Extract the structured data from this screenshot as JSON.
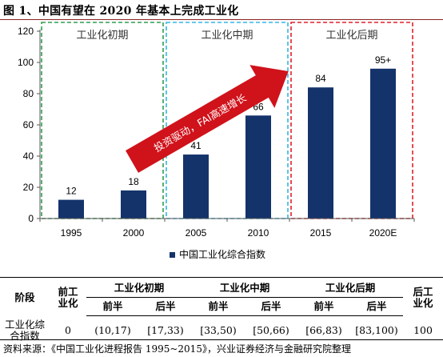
{
  "figure": {
    "title": "图 1、中国有望在 2020 年基本上完成工业化"
  },
  "chart_data": {
    "type": "bar",
    "categories": [
      "1995",
      "2000",
      "2005",
      "2010",
      "2015",
      "2020E"
    ],
    "series": [
      {
        "name": "中国工业化综合指数",
        "values": [
          12,
          18,
          41,
          66,
          84,
          96
        ]
      }
    ],
    "data_labels": [
      "12",
      "18",
      "41",
      "66",
      "84",
      "95+"
    ],
    "ylim": [
      0,
      120
    ],
    "yticks": [
      0,
      20,
      40,
      60,
      80,
      100,
      120
    ],
    "bar_color": "#14336b",
    "grid": false,
    "legend_position": "bottom",
    "stages": [
      {
        "label": "工业化初期",
        "color": "#2e9e4f"
      },
      {
        "label": "工业化中期",
        "color": "#33b5e5"
      },
      {
        "label": "工业化后期",
        "color": "#e0202a"
      }
    ],
    "arrow": {
      "label": "投资驱动，FAI高速增长",
      "color": "#d0121b"
    }
  },
  "table": {
    "stage_header": "阶段",
    "pre_header": [
      "前工",
      "业化"
    ],
    "post_header": [
      "后工",
      "业化"
    ],
    "groups": [
      "工业化初期",
      "工业化中期",
      "工业化后期"
    ],
    "halves": [
      "前半",
      "后半",
      "前半",
      "后半",
      "前半",
      "后半"
    ],
    "row_label": [
      "工业化综",
      "合指数"
    ],
    "values": [
      "0",
      "(10,17)",
      "[17,33)",
      "[33,50)",
      "[50,66)",
      "[66,83)",
      "[83,100)",
      "100"
    ]
  },
  "source": "资料来源：《中国工业化进程报告 1995~2015》，兴业证券经济与金融研究院整理"
}
